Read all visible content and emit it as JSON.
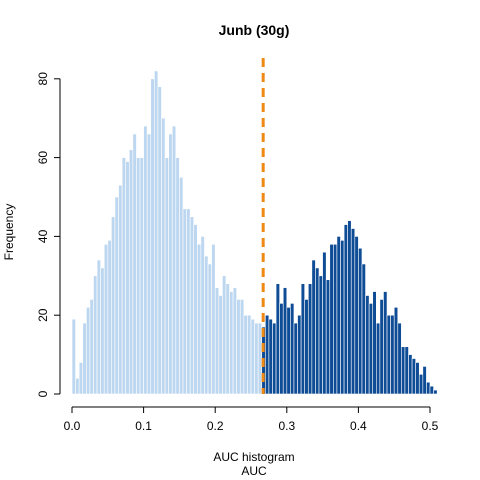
{
  "chart_data": {
    "type": "bar",
    "title": "Junb (30g)",
    "xlabel": "AUC histogram",
    "xlabel2": "AUC",
    "ylabel": "Frequency",
    "xlim": [
      0.0,
      0.51
    ],
    "ylim": [
      0,
      85
    ],
    "x_ticks": [
      "0.0",
      "0.1",
      "0.2",
      "0.3",
      "0.4",
      "0.5"
    ],
    "y_ticks": [
      "0",
      "20",
      "40",
      "60",
      "80"
    ],
    "bin_start": 0.0,
    "bin_width": 0.005,
    "threshold": 0.267,
    "colors": {
      "below_threshold": "#bdd7f0",
      "above_threshold": "#0f4c96",
      "threshold_line": "#ee8a14",
      "bar_border": "#ffffff"
    },
    "counts": [
      19,
      4,
      8,
      18,
      22,
      24,
      30,
      34,
      32,
      38,
      39,
      45,
      50,
      53,
      60,
      59,
      62,
      66,
      60,
      60,
      68,
      66,
      80,
      82,
      78,
      70,
      60,
      66,
      68,
      60,
      55,
      47,
      47,
      45,
      43,
      38,
      40,
      35,
      33,
      38,
      27,
      25,
      30,
      28,
      26,
      27,
      24,
      24,
      20,
      20,
      19,
      18,
      18,
      17,
      20,
      19,
      18,
      28,
      23,
      27,
      22,
      23,
      18,
      20,
      28,
      24,
      28,
      34,
      32,
      30,
      36,
      29,
      38,
      38,
      40,
      39,
      43,
      44,
      42,
      40,
      37,
      33,
      25,
      23,
      26,
      18,
      24,
      26,
      20,
      20,
      22,
      18,
      12,
      12,
      10,
      9,
      8,
      5,
      7,
      3,
      2,
      1
    ]
  }
}
